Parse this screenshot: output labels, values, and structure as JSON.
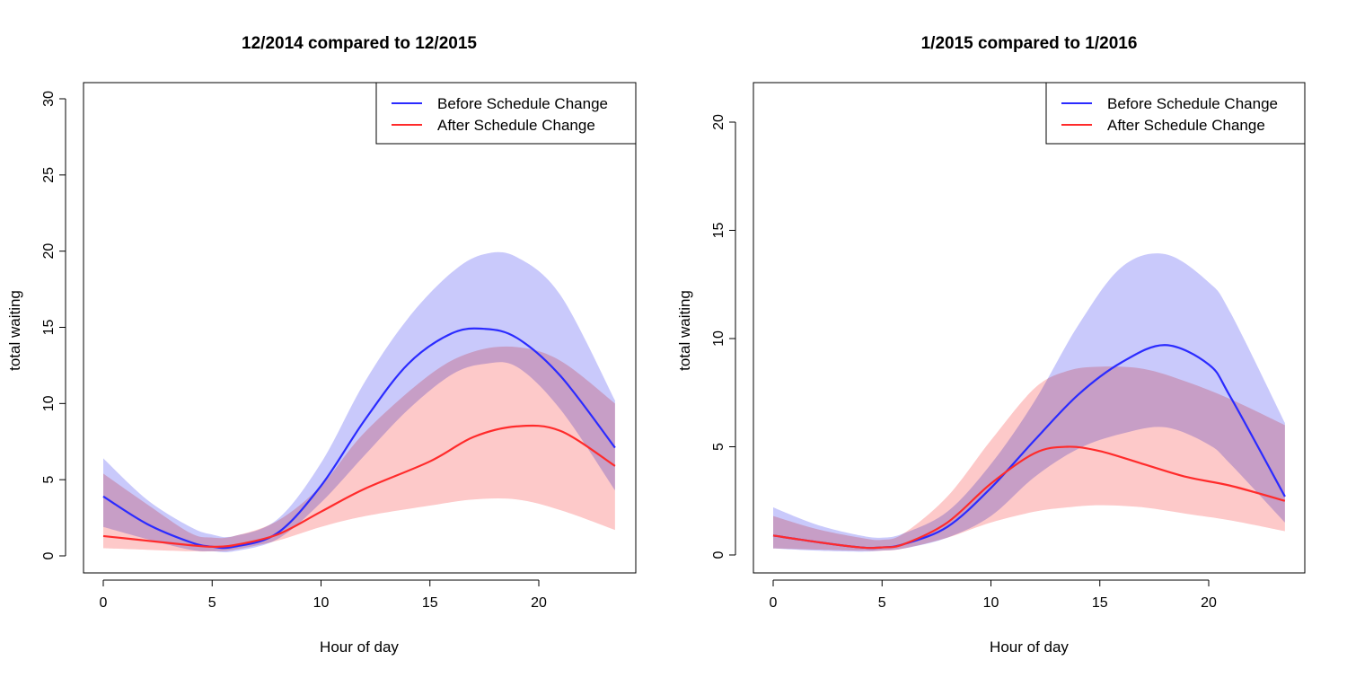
{
  "chart_data": [
    {
      "type": "line",
      "title": "12/2014 compared to 12/2015",
      "xlabel": "Hour of day",
      "ylabel": "total waiting",
      "xlim": [
        0,
        23.5
      ],
      "ylim": [
        0,
        30
      ],
      "xticks": [
        "0",
        "5",
        "10",
        "15",
        "20"
      ],
      "yticks": [
        "0",
        "5",
        "10",
        "15",
        "20",
        "25",
        "30"
      ],
      "legend_position": "top-right",
      "series": [
        {
          "name": "Before Schedule Change",
          "color": "#2b2bff",
          "band_color": "#c9c9fb",
          "x": [
            0,
            2,
            4,
            5,
            6,
            8,
            10,
            12,
            14,
            16,
            17.5,
            19,
            21,
            23.5
          ],
          "y": [
            3.9,
            2.1,
            0.9,
            0.6,
            0.6,
            1.5,
            4.6,
            8.9,
            12.6,
            14.6,
            14.9,
            14.3,
            11.8,
            7.1
          ],
          "upper": [
            6.4,
            3.7,
            1.9,
            1.4,
            1.3,
            2.4,
            6.1,
            11.4,
            15.6,
            18.6,
            19.8,
            19.6,
            17.1,
            10.2
          ],
          "lower": [
            1.9,
            1.1,
            0.4,
            0.3,
            0.3,
            1.1,
            3.5,
            6.6,
            9.6,
            11.9,
            12.6,
            12.4,
            9.6,
            4.3
          ]
        },
        {
          "name": "After Schedule Change",
          "color": "#ff2b2b",
          "band_color": "#fdc9c9",
          "x": [
            0,
            2,
            4,
            5,
            6,
            8,
            10,
            12,
            15,
            17,
            19,
            21,
            23.5
          ],
          "y": [
            1.3,
            1.0,
            0.7,
            0.6,
            0.7,
            1.4,
            2.9,
            4.4,
            6.2,
            7.8,
            8.5,
            8.2,
            5.9
          ],
          "upper": [
            5.4,
            3.4,
            1.5,
            1.2,
            1.3,
            2.3,
            4.6,
            8.1,
            11.9,
            13.4,
            13.7,
            12.8,
            10.0
          ],
          "lower": [
            0.5,
            0.4,
            0.3,
            0.3,
            0.4,
            1.0,
            1.9,
            2.6,
            3.3,
            3.7,
            3.7,
            3.0,
            1.7
          ]
        }
      ]
    },
    {
      "type": "line",
      "title": "1/2015 compared to 1/2016",
      "xlabel": "Hour of day",
      "ylabel": "total waiting",
      "xlim": [
        0,
        23.5
      ],
      "ylim": [
        0,
        21
      ],
      "xticks": [
        "0",
        "5",
        "10",
        "15",
        "20"
      ],
      "yticks": [
        "0",
        "5",
        "10",
        "15",
        "20"
      ],
      "legend_position": "top-right",
      "series": [
        {
          "name": "Before Schedule Change",
          "color": "#2b2bff",
          "band_color": "#c9c9fb",
          "x": [
            0,
            2,
            4,
            5,
            6,
            8,
            10,
            12,
            14,
            16,
            18,
            20,
            21,
            23.5
          ],
          "y": [
            0.9,
            0.6,
            0.35,
            0.35,
            0.5,
            1.3,
            3.1,
            5.3,
            7.4,
            8.9,
            9.7,
            8.8,
            7.3,
            2.7
          ],
          "upper": [
            2.2,
            1.4,
            0.9,
            0.8,
            1.0,
            2.0,
            4.2,
            7.1,
            10.6,
            13.3,
            13.9,
            12.6,
            11.2,
            6.1
          ],
          "lower": [
            0.3,
            0.2,
            0.15,
            0.2,
            0.3,
            0.8,
            1.8,
            3.6,
            4.9,
            5.6,
            5.9,
            5.1,
            4.2,
            1.5
          ]
        },
        {
          "name": "After Schedule Change",
          "color": "#ff2b2b",
          "band_color": "#fdc9c9",
          "x": [
            0,
            2,
            4,
            5,
            6,
            8,
            10,
            12,
            13.5,
            15,
            17,
            19,
            21,
            23.5
          ],
          "y": [
            0.9,
            0.6,
            0.35,
            0.35,
            0.5,
            1.5,
            3.3,
            4.7,
            5.0,
            4.8,
            4.2,
            3.6,
            3.2,
            2.5
          ],
          "upper": [
            1.8,
            1.2,
            0.8,
            0.7,
            1.0,
            2.7,
            5.3,
            7.7,
            8.5,
            8.7,
            8.6,
            8.0,
            7.2,
            6.0
          ],
          "lower": [
            0.3,
            0.25,
            0.2,
            0.2,
            0.3,
            0.8,
            1.5,
            2.0,
            2.2,
            2.3,
            2.2,
            1.9,
            1.6,
            1.1
          ]
        }
      ]
    }
  ]
}
